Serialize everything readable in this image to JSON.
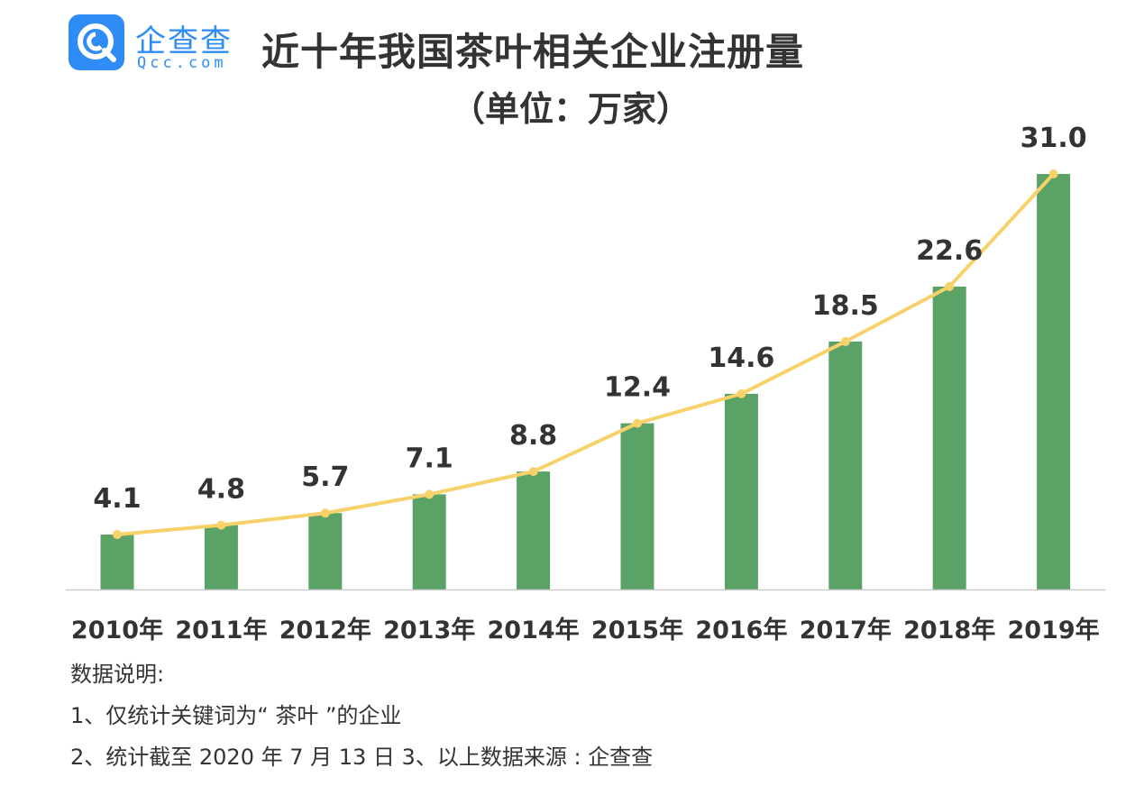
{
  "logo": {
    "name": "企查查",
    "domain": "Qcc.com"
  },
  "colors": {
    "bar": "#5ba266",
    "line": "#f7d26b",
    "axis": "#cccccc",
    "brand": "#2f8cf5"
  },
  "notes": {
    "heading": "数据说明:",
    "item1": "1、仅统计关键词为“ 茶叶 ”的企业",
    "item2": "2、统计截至 2020 年 7 月 13 日    3、以上数据来源 : 企查查"
  },
  "chart_data": {
    "type": "bar",
    "title": "近十年我国茶叶相关企业注册量",
    "subtitle": "（单位：万家）",
    "categories": [
      "2010年",
      "2011年",
      "2012年",
      "2013年",
      "2014年",
      "2015年",
      "2016年",
      "2017年",
      "2018年",
      "2019年"
    ],
    "values": [
      4.1,
      4.8,
      5.7,
      7.1,
      8.8,
      12.4,
      14.6,
      18.5,
      22.6,
      31.0
    ],
    "value_labels": [
      "4.1",
      "4.8",
      "5.7",
      "7.1",
      "8.8",
      "12.4",
      "14.6",
      "18.5",
      "22.6",
      "31.0"
    ],
    "overlay": "line connecting bar tops",
    "ylim": [
      0,
      31.0
    ],
    "grid": false,
    "legend": "none"
  }
}
